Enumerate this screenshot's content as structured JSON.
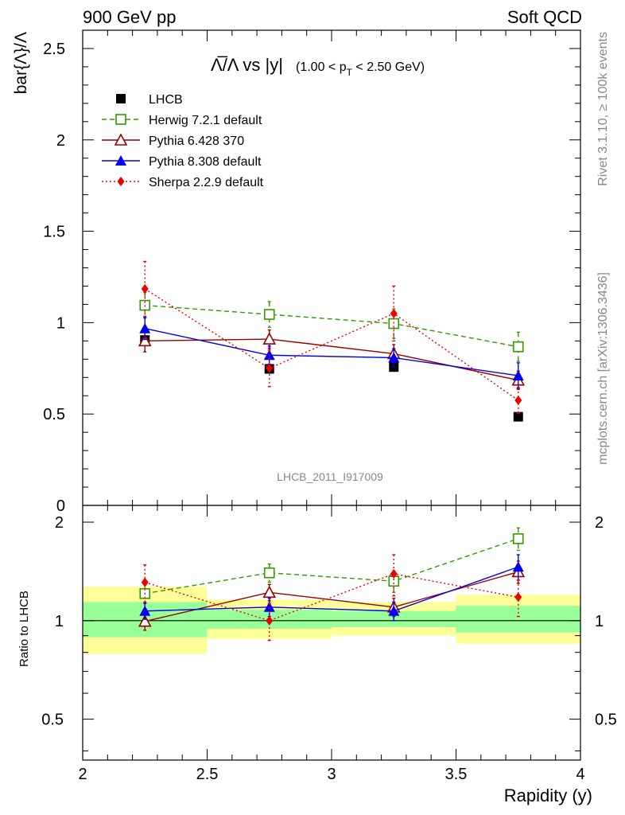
{
  "header": {
    "left": "900 GeV pp",
    "right": "Soft QCD"
  },
  "side_labels": {
    "rivet": "Rivet 3.1.10, ≥ 100k events",
    "mcplots": "mcplots.cern.ch [arXiv:1306.3436]"
  },
  "chart_data": [
    {
      "type": "scatter",
      "panel": "main",
      "title_main": "Λ̅/Λ vs |y|",
      "title_range_prefix": "(1.00 < p",
      "title_range_sub": "T",
      "title_range_suffix": " < 2.50 GeV)",
      "ylabel": "bar{Λ}/Λ",
      "xlabel": "Rapidity (y)",
      "watermark": "LHCB_2011_I917009",
      "xlim": [
        2,
        4
      ],
      "ylim": [
        0,
        2.6
      ],
      "xticks": [
        "2",
        "2.5",
        "3",
        "3.5",
        "4"
      ],
      "yticks": [
        "0",
        "0.5",
        "1",
        "1.5",
        "2",
        "2.5"
      ],
      "x": [
        2.25,
        2.75,
        3.25,
        3.75
      ],
      "x_bins": [
        [
          2.0,
          2.5
        ],
        [
          2.5,
          3.0
        ],
        [
          3.0,
          3.5
        ],
        [
          3.5,
          4.0
        ]
      ],
      "legend_position": "top-left",
      "series": [
        {
          "name": "LHCB",
          "color": "#000000",
          "marker": "square-filled",
          "line": "none",
          "values": [
            0.905,
            0.747,
            0.757,
            0.485
          ],
          "err": [
            0.02,
            0.02,
            0.015,
            0.01
          ]
        },
        {
          "name": "Herwig 7.2.1 default",
          "color": "#339900",
          "marker": "square-open",
          "line": "dashed",
          "values": [
            1.095,
            1.045,
            0.995,
            0.868
          ],
          "err": [
            0.07,
            0.07,
            0.08,
            0.08
          ]
        },
        {
          "name": "Pythia 6.428 370",
          "color": "#990000",
          "marker": "triangle-open",
          "line": "solid",
          "values": [
            0.9,
            0.91,
            0.83,
            0.685
          ],
          "err": [
            0.06,
            0.05,
            0.05,
            0.05
          ]
        },
        {
          "name": "Pythia 8.308 default",
          "color": "#0000ee",
          "marker": "triangle-filled",
          "line": "solid",
          "values": [
            0.968,
            0.822,
            0.808,
            0.71
          ],
          "err": [
            0.06,
            0.05,
            0.05,
            0.07
          ]
        },
        {
          "name": "Sherpa 2.2.9 default",
          "color": "#ee0000",
          "marker": "diamond-filled",
          "line": "dotted",
          "values": [
            1.185,
            0.75,
            1.05,
            0.575
          ],
          "err": [
            0.15,
            0.1,
            0.15,
            0.07
          ]
        }
      ]
    },
    {
      "type": "scatter",
      "panel": "ratio",
      "ylabel": "Ratio to LHCB",
      "xlabel": "Rapidity (y)",
      "xlim": [
        2,
        4
      ],
      "ylim": [
        0.375,
        2.25
      ],
      "log_y": true,
      "xticks": [
        "2",
        "2.5",
        "3",
        "3.5",
        "4"
      ],
      "yticks": [
        "0.5",
        "1",
        "2"
      ],
      "x": [
        2.25,
        2.75,
        3.25,
        3.75
      ],
      "bands": {
        "yellow_color": "#ffff99",
        "green_color": "#99ff99",
        "yellow": [
          [
            0.79,
            1.27
          ],
          [
            0.88,
            1.16
          ],
          [
            0.9,
            1.14
          ],
          [
            0.85,
            1.2
          ]
        ],
        "green": [
          [
            0.89,
            1.14
          ],
          [
            0.945,
            1.08
          ],
          [
            0.955,
            1.07
          ],
          [
            0.92,
            1.11
          ]
        ]
      },
      "series": [
        {
          "name": "Herwig 7.2.1 default",
          "color": "#339900",
          "marker": "square-open",
          "line": "dashed",
          "values": [
            1.21,
            1.4,
            1.32,
            1.78
          ],
          "err": [
            0.08,
            0.09,
            0.1,
            0.14
          ]
        },
        {
          "name": "Pythia 6.428 370",
          "color": "#990000",
          "marker": "triangle-open",
          "line": "solid",
          "values": [
            0.995,
            1.22,
            1.1,
            1.41
          ],
          "err": [
            0.06,
            0.07,
            0.07,
            0.11
          ]
        },
        {
          "name": "Pythia 8.308 default",
          "color": "#0000ee",
          "marker": "triangle-filled",
          "line": "solid",
          "values": [
            1.07,
            1.1,
            1.07,
            1.46
          ],
          "err": [
            0.06,
            0.07,
            0.07,
            0.13
          ]
        },
        {
          "name": "Sherpa 2.2.9 default",
          "color": "#ee0000",
          "marker": "diamond-filled",
          "line": "dotted",
          "values": [
            1.31,
            1.0,
            1.39,
            1.18
          ],
          "err": [
            0.17,
            0.13,
            0.2,
            0.15
          ]
        }
      ]
    }
  ]
}
